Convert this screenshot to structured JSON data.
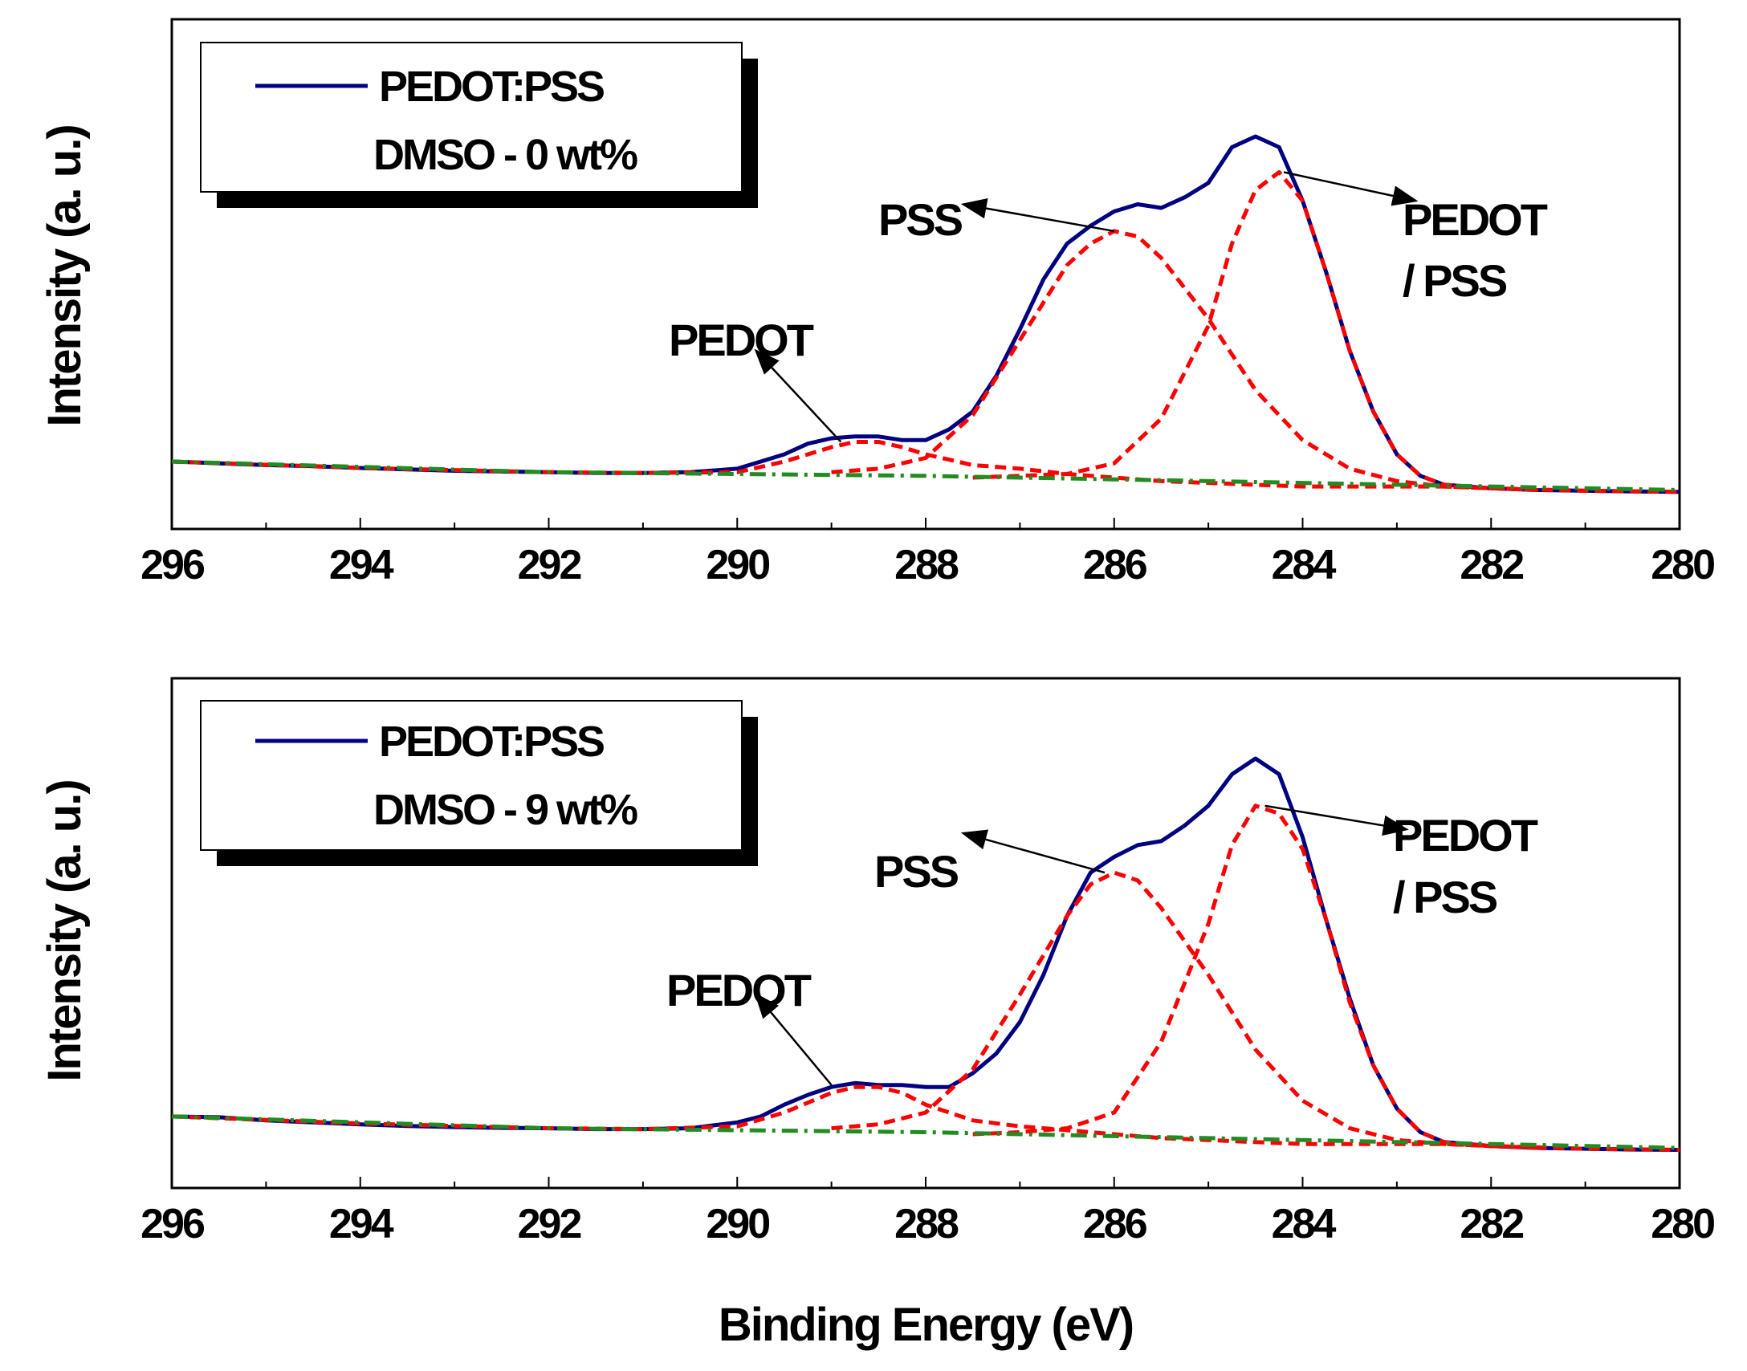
{
  "chart_data": [
    {
      "type": "line",
      "xlabel": "",
      "ylabel": "Intensity (a. u.)",
      "xlim": [
        296,
        280
      ],
      "ylim": [
        0,
        1
      ],
      "x_reversed": true,
      "x_ticks": [
        "296",
        "294",
        "292",
        "290",
        "288",
        "286",
        "284",
        "282",
        "280"
      ],
      "legend": {
        "placement": "top-left",
        "lines": [
          "PEDOT:PSS",
          "DMSO - 0 wt%"
        ],
        "series_color": "#000080"
      },
      "annotations": [
        {
          "text": "PSS",
          "x": 287.8,
          "y": 0.79
        },
        {
          "text": "PEDOT",
          "x": 289.9,
          "y": 0.47
        },
        {
          "text": "PEDOT",
          "x": 281.2,
          "y": 0.8
        },
        {
          "text": "/ PSS",
          "x": 281.6,
          "y": 0.63
        }
      ],
      "arrows": [
        {
          "x1": 286.0,
          "y1": 0.735,
          "x2": 287.6,
          "y2": 0.81
        },
        {
          "x1": 288.9,
          "y1": 0.145,
          "x2": 289.8,
          "y2": 0.4
        },
        {
          "x1": 284.2,
          "y1": 0.9,
          "x2": 282.8,
          "y2": 0.82
        }
      ],
      "background": {
        "x": [
          296,
          292,
          290,
          288,
          286,
          284,
          282,
          280
        ],
        "y": [
          0.09,
          0.06,
          0.055,
          0.05,
          0.04,
          0.03,
          0.02,
          0.01
        ]
      },
      "series": [
        {
          "color": "#000080",
          "style": "solid",
          "x": [
            296.0,
            295.5,
            295.0,
            294.5,
            294.0,
            293.5,
            293.0,
            292.5,
            292.0,
            291.5,
            291.0,
            290.5,
            290.0,
            289.75,
            289.5,
            289.25,
            289.0,
            288.75,
            288.5,
            288.25,
            288.0,
            287.75,
            287.5,
            287.25,
            287.0,
            286.75,
            286.5,
            286.25,
            286.0,
            285.75,
            285.5,
            285.25,
            285.0,
            284.75,
            284.5,
            284.25,
            284.0,
            283.75,
            283.5,
            283.25,
            283.0,
            282.75,
            282.5,
            282.25,
            282.0,
            281.5,
            281.0,
            280.5,
            280.0
          ],
          "y": [
            0.09,
            0.085,
            0.08,
            0.077,
            0.072,
            0.068,
            0.064,
            0.062,
            0.06,
            0.058,
            0.058,
            0.06,
            0.07,
            0.09,
            0.11,
            0.14,
            0.155,
            0.16,
            0.16,
            0.15,
            0.15,
            0.18,
            0.23,
            0.33,
            0.46,
            0.6,
            0.7,
            0.75,
            0.79,
            0.81,
            0.8,
            0.83,
            0.87,
            0.97,
            1.0,
            0.97,
            0.82,
            0.62,
            0.4,
            0.23,
            0.11,
            0.05,
            0.025,
            0.02,
            0.015,
            0.01,
            0.008,
            0.006,
            0.005
          ]
        },
        {
          "color": "#ff0000",
          "style": "dashed",
          "x": [
            296.0,
            294.0,
            292.0,
            291.0,
            290.0,
            289.5,
            289.0,
            288.75,
            288.5,
            288.25,
            288.0,
            287.5,
            287.0,
            286.5,
            286.0,
            285.5,
            285.0,
            284.5,
            284.0,
            283.5,
            283.0,
            282.5,
            282.0,
            281.0,
            280.0
          ],
          "y": [
            0.09,
            0.072,
            0.06,
            0.058,
            0.06,
            0.09,
            0.13,
            0.145,
            0.145,
            0.13,
            0.11,
            0.08,
            0.07,
            0.055,
            0.045,
            0.035,
            0.03,
            0.025,
            0.02,
            0.02,
            0.02,
            0.02,
            0.015,
            0.008,
            0.005
          ]
        },
        {
          "color": "#ff0000",
          "style": "dashed",
          "x": [
            289.0,
            288.5,
            288.0,
            287.5,
            287.0,
            286.5,
            286.25,
            286.0,
            285.75,
            285.5,
            285.0,
            284.5,
            284.0,
            283.5,
            283.0,
            282.5,
            282.0
          ],
          "y": [
            0.06,
            0.07,
            0.1,
            0.22,
            0.43,
            0.64,
            0.7,
            0.735,
            0.72,
            0.66,
            0.49,
            0.29,
            0.15,
            0.07,
            0.035,
            0.02,
            0.015
          ]
        },
        {
          "color": "#ff0000",
          "style": "dashed",
          "x": [
            287.5,
            287.0,
            286.5,
            286.0,
            285.5,
            285.0,
            284.75,
            284.5,
            284.25,
            284.0,
            283.75,
            283.5,
            283.25,
            283.0,
            282.75,
            282.5,
            282.0,
            281.5
          ],
          "y": [
            0.045,
            0.05,
            0.055,
            0.085,
            0.21,
            0.47,
            0.7,
            0.85,
            0.9,
            0.82,
            0.62,
            0.4,
            0.23,
            0.11,
            0.05,
            0.025,
            0.015,
            0.01
          ]
        },
        {
          "color": "#228B22",
          "style": "dashdot",
          "x": [
            296,
            292,
            290,
            288,
            286,
            284,
            282,
            280
          ],
          "y": [
            0.09,
            0.06,
            0.055,
            0.05,
            0.04,
            0.03,
            0.02,
            0.01
          ]
        }
      ]
    },
    {
      "type": "line",
      "xlabel": "Binding Energy (eV)",
      "ylabel": "Intensity (a. u.)",
      "xlim": [
        296,
        280
      ],
      "ylim": [
        0,
        1
      ],
      "x_reversed": true,
      "x_ticks": [
        "296",
        "294",
        "292",
        "290",
        "288",
        "286",
        "284",
        "282",
        "280"
      ],
      "legend": {
        "placement": "top-left",
        "lines": [
          "PEDOT:PSS",
          "DMSO - 9 wt%"
        ],
        "series_color": "#000080"
      },
      "annotations": [
        {
          "text": "PSS",
          "x": 287.8,
          "y": 0.79
        },
        {
          "text": "PEDOT",
          "x": 289.9,
          "y": 0.47
        },
        {
          "text": "PEDOT",
          "x": 281.3,
          "y": 0.8
        },
        {
          "text": "/ PSS",
          "x": 281.7,
          "y": 0.63
        }
      ],
      "arrows": [
        {
          "x1": 286.1,
          "y1": 0.71,
          "x2": 287.6,
          "y2": 0.81
        },
        {
          "x1": 289.0,
          "y1": 0.17,
          "x2": 289.8,
          "y2": 0.4
        },
        {
          "x1": 284.4,
          "y1": 0.88,
          "x2": 282.9,
          "y2": 0.82
        }
      ],
      "background": {
        "x": [
          296,
          292,
          290,
          288,
          286,
          284,
          282,
          280
        ],
        "y": [
          0.09,
          0.06,
          0.055,
          0.05,
          0.04,
          0.03,
          0.02,
          0.01
        ]
      },
      "series": [
        {
          "color": "#000080",
          "style": "solid",
          "x": [
            296.0,
            295.5,
            295.0,
            294.5,
            294.0,
            293.5,
            293.0,
            292.5,
            292.0,
            291.5,
            291.0,
            290.5,
            290.0,
            289.75,
            289.5,
            289.25,
            289.0,
            288.75,
            288.5,
            288.25,
            288.0,
            287.75,
            287.5,
            287.25,
            287.0,
            286.75,
            286.5,
            286.25,
            286.0,
            285.75,
            285.5,
            285.25,
            285.0,
            284.75,
            284.5,
            284.25,
            284.0,
            283.75,
            283.5,
            283.25,
            283.0,
            282.75,
            282.5,
            282.25,
            282.0,
            281.5,
            281.0,
            280.5,
            280.0
          ],
          "y": [
            0.09,
            0.088,
            0.08,
            0.075,
            0.07,
            0.066,
            0.063,
            0.061,
            0.06,
            0.058,
            0.058,
            0.06,
            0.075,
            0.09,
            0.12,
            0.145,
            0.165,
            0.175,
            0.17,
            0.17,
            0.165,
            0.165,
            0.2,
            0.25,
            0.33,
            0.45,
            0.6,
            0.71,
            0.75,
            0.78,
            0.79,
            0.83,
            0.88,
            0.96,
            1.0,
            0.96,
            0.8,
            0.59,
            0.39,
            0.22,
            0.11,
            0.05,
            0.025,
            0.02,
            0.015,
            0.01,
            0.008,
            0.006,
            0.005
          ]
        },
        {
          "color": "#ff0000",
          "style": "dashed",
          "x": [
            296.0,
            294.0,
            292.0,
            291.0,
            290.0,
            289.5,
            289.0,
            288.75,
            288.5,
            288.25,
            288.0,
            287.5,
            287.0,
            286.5,
            286.0,
            285.5,
            285.0,
            284.5,
            284.0,
            283.5,
            283.0,
            282.5,
            282.0,
            281.0,
            280.0
          ],
          "y": [
            0.09,
            0.072,
            0.06,
            0.058,
            0.065,
            0.1,
            0.15,
            0.165,
            0.165,
            0.15,
            0.12,
            0.08,
            0.065,
            0.055,
            0.045,
            0.035,
            0.03,
            0.025,
            0.02,
            0.02,
            0.02,
            0.02,
            0.015,
            0.008,
            0.005
          ]
        },
        {
          "color": "#ff0000",
          "style": "dashed",
          "x": [
            289.0,
            288.5,
            288.0,
            287.5,
            287.0,
            286.5,
            286.25,
            286.0,
            285.75,
            285.5,
            285.0,
            284.5,
            284.0,
            283.5,
            283.0,
            282.5,
            282.0
          ],
          "y": [
            0.06,
            0.07,
            0.1,
            0.21,
            0.4,
            0.6,
            0.68,
            0.71,
            0.69,
            0.62,
            0.45,
            0.26,
            0.13,
            0.06,
            0.03,
            0.02,
            0.015
          ]
        },
        {
          "color": "#ff0000",
          "style": "dashed",
          "x": [
            287.5,
            287.0,
            286.5,
            286.0,
            285.5,
            285.0,
            284.75,
            284.5,
            284.25,
            284.0,
            283.75,
            283.5,
            283.25,
            283.0,
            282.75,
            282.5,
            282.0,
            281.5
          ],
          "y": [
            0.045,
            0.05,
            0.06,
            0.1,
            0.28,
            0.58,
            0.78,
            0.88,
            0.86,
            0.77,
            0.59,
            0.38,
            0.22,
            0.11,
            0.05,
            0.025,
            0.015,
            0.01
          ]
        },
        {
          "color": "#228B22",
          "style": "dashdot",
          "x": [
            296,
            292,
            290,
            288,
            286,
            284,
            282,
            280
          ],
          "y": [
            0.09,
            0.06,
            0.055,
            0.05,
            0.04,
            0.03,
            0.02,
            0.01
          ]
        }
      ]
    }
  ]
}
